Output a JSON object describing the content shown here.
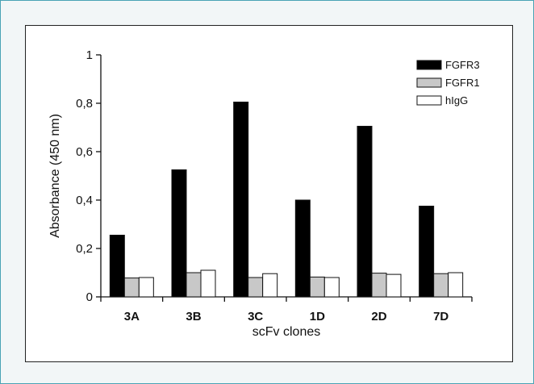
{
  "chart_data": {
    "type": "bar",
    "title": "",
    "xlabel": "scFv clones",
    "ylabel": "Absorbance (450 nm)",
    "ylim": [
      0,
      1
    ],
    "yticks": [
      0,
      0.2,
      0.4,
      0.6,
      0.8,
      1
    ],
    "ytick_labels": [
      "0",
      "0,2",
      "0,4",
      "0,6",
      "0,8",
      "1"
    ],
    "categories": [
      "3A",
      "3B",
      "3C",
      "1D",
      "2D",
      "7D"
    ],
    "series": [
      {
        "name": "FGFR3",
        "color": "#000000",
        "values": [
          0.255,
          0.525,
          0.805,
          0.4,
          0.705,
          0.375
        ]
      },
      {
        "name": "FGFR1",
        "color": "#c8c8c8",
        "values": [
          0.078,
          0.1,
          0.08,
          0.082,
          0.098,
          0.096
        ]
      },
      {
        "name": "hIgG",
        "color": "#ffffff",
        "values": [
          0.08,
          0.11,
          0.096,
          0.08,
          0.093,
          0.1
        ]
      }
    ],
    "grid": false,
    "legend_position": "top-right"
  }
}
